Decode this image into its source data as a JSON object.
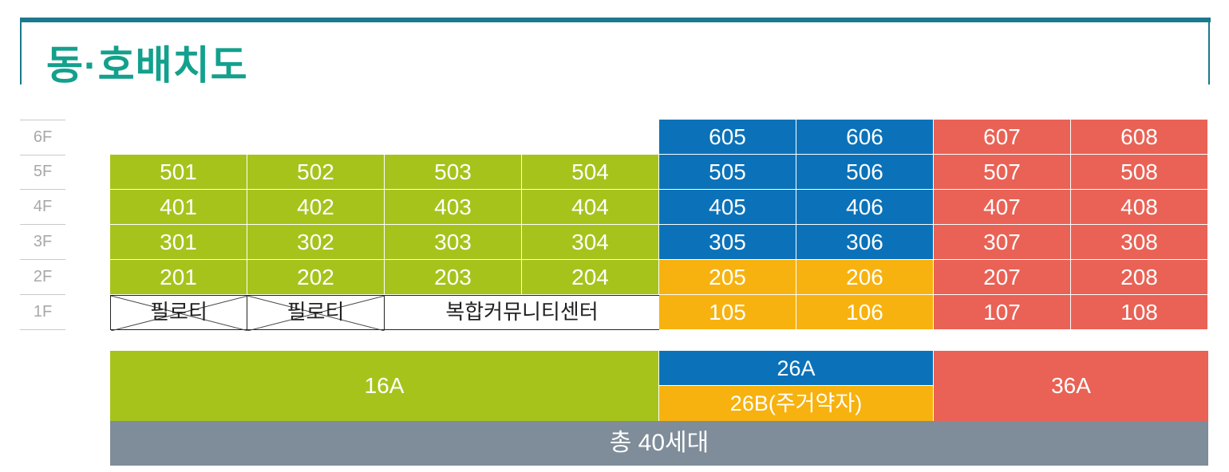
{
  "title": "동·호배치도",
  "floors": [
    "6F",
    "5F",
    "4F",
    "3F",
    "2F",
    "1F"
  ],
  "units": {
    "row6": [
      "605",
      "606",
      "607",
      "608"
    ],
    "row5": [
      "501",
      "502",
      "503",
      "504",
      "505",
      "506",
      "507",
      "508"
    ],
    "row4": [
      "401",
      "402",
      "403",
      "404",
      "405",
      "406",
      "407",
      "408"
    ],
    "row3": [
      "301",
      "302",
      "303",
      "304",
      "305",
      "306",
      "307",
      "308"
    ],
    "row2": [
      "201",
      "202",
      "203",
      "204",
      "205",
      "206",
      "207",
      "208"
    ],
    "row1": [
      "105",
      "106",
      "107",
      "108"
    ]
  },
  "ground": {
    "piloti": "필로티",
    "community": "복합커뮤니티센터"
  },
  "types": {
    "t16a": "16A",
    "t26a": "26A",
    "t26b": "26B(주거약자)",
    "t36a": "36A"
  },
  "total": "총 40세대",
  "colors": {
    "title": "#13a08c",
    "frame": "#1a7a8c",
    "type_16a": "#a6c31c",
    "type_26a": "#0b72b9",
    "type_26b": "#f7b20f",
    "type_36a": "#e96255",
    "total_bar": "#7f8c99"
  }
}
